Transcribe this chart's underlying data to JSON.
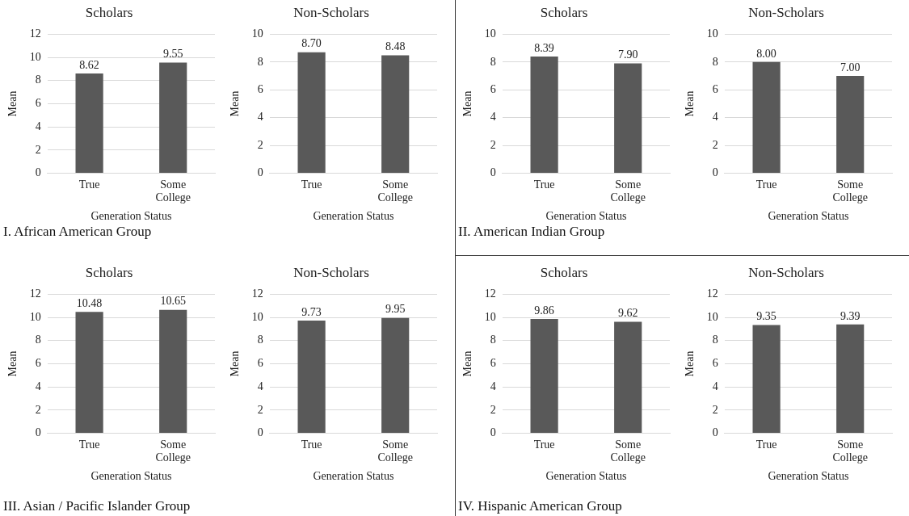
{
  "chart_data": [
    {
      "type": "bar",
      "title": "Scholars",
      "xlabel": "Generation Status",
      "ylabel": "Mean",
      "categories": [
        "True",
        "Some College"
      ],
      "values": [
        8.62,
        9.55
      ],
      "value_labels": [
        "8.62",
        "9.55"
      ],
      "color": "#595959",
      "ylim": [
        0,
        12
      ],
      "yticks": [
        0,
        2,
        4,
        6,
        8,
        10,
        12
      ],
      "grid": "y",
      "annotations": [
        "I. African American Group"
      ]
    },
    {
      "type": "bar",
      "title": "Non-Scholars",
      "xlabel": "Generation Status",
      "ylabel": "Mean",
      "categories": [
        "True",
        "Some College"
      ],
      "values": [
        8.7,
        8.48
      ],
      "value_labels": [
        "8.70",
        "8.48"
      ],
      "color": "#595959",
      "ylim": [
        0,
        10
      ],
      "yticks": [
        0,
        2,
        4,
        6,
        8,
        10
      ],
      "grid": "y"
    },
    {
      "type": "bar",
      "title": "Scholars",
      "xlabel": "Generation Status",
      "ylabel": "Mean",
      "categories": [
        "True",
        "Some College"
      ],
      "values": [
        8.39,
        7.9
      ],
      "value_labels": [
        "8.39",
        "7.90"
      ],
      "color": "#595959",
      "ylim": [
        0,
        10
      ],
      "yticks": [
        0,
        2,
        4,
        6,
        8,
        10
      ],
      "grid": "y",
      "annotations": [
        "II. American Indian Group"
      ]
    },
    {
      "type": "bar",
      "title": "Non-Scholars",
      "xlabel": "Generation Status",
      "ylabel": "Mean",
      "categories": [
        "True",
        "Some College"
      ],
      "values": [
        8.0,
        7.0
      ],
      "value_labels": [
        "8.00",
        "7.00"
      ],
      "color": "#595959",
      "ylim": [
        0,
        10
      ],
      "yticks": [
        0,
        2,
        4,
        6,
        8,
        10
      ],
      "grid": "y"
    },
    {
      "type": "bar",
      "title": "Scholars",
      "xlabel": "Generation Status",
      "ylabel": "Mean",
      "categories": [
        "True",
        "Some College"
      ],
      "values": [
        10.48,
        10.65
      ],
      "value_labels": [
        "10.48",
        "10.65"
      ],
      "color": "#595959",
      "ylim": [
        0,
        12
      ],
      "yticks": [
        0,
        2,
        4,
        6,
        8,
        10,
        12
      ],
      "grid": "y",
      "annotations": [
        "III. Asian / Pacific Islander Group"
      ]
    },
    {
      "type": "bar",
      "title": "Non-Scholars",
      "xlabel": "Generation Status",
      "ylabel": "Mean",
      "categories": [
        "True",
        "Some College"
      ],
      "values": [
        9.73,
        9.95
      ],
      "value_labels": [
        "9.73",
        "9.95"
      ],
      "color": "#595959",
      "ylim": [
        0,
        12
      ],
      "yticks": [
        0,
        2,
        4,
        6,
        8,
        10,
        12
      ],
      "grid": "y"
    },
    {
      "type": "bar",
      "title": "Scholars",
      "xlabel": "Generation Status",
      "ylabel": "Mean",
      "categories": [
        "True",
        "Some College"
      ],
      "values": [
        9.86,
        9.62
      ],
      "value_labels": [
        "9.86",
        "9.62"
      ],
      "color": "#595959",
      "ylim": [
        0,
        12
      ],
      "yticks": [
        0,
        2,
        4,
        6,
        8,
        10,
        12
      ],
      "grid": "y",
      "annotations": [
        "IV. Hispanic American Group"
      ]
    },
    {
      "type": "bar",
      "title": "Non-Scholars",
      "xlabel": "Generation Status",
      "ylabel": "Mean",
      "categories": [
        "True",
        "Some College"
      ],
      "values": [
        9.35,
        9.39
      ],
      "value_labels": [
        "9.35",
        "9.39"
      ],
      "color": "#595959",
      "ylim": [
        0,
        12
      ],
      "yticks": [
        0,
        2,
        4,
        6,
        8,
        10,
        12
      ],
      "grid": "y"
    }
  ]
}
